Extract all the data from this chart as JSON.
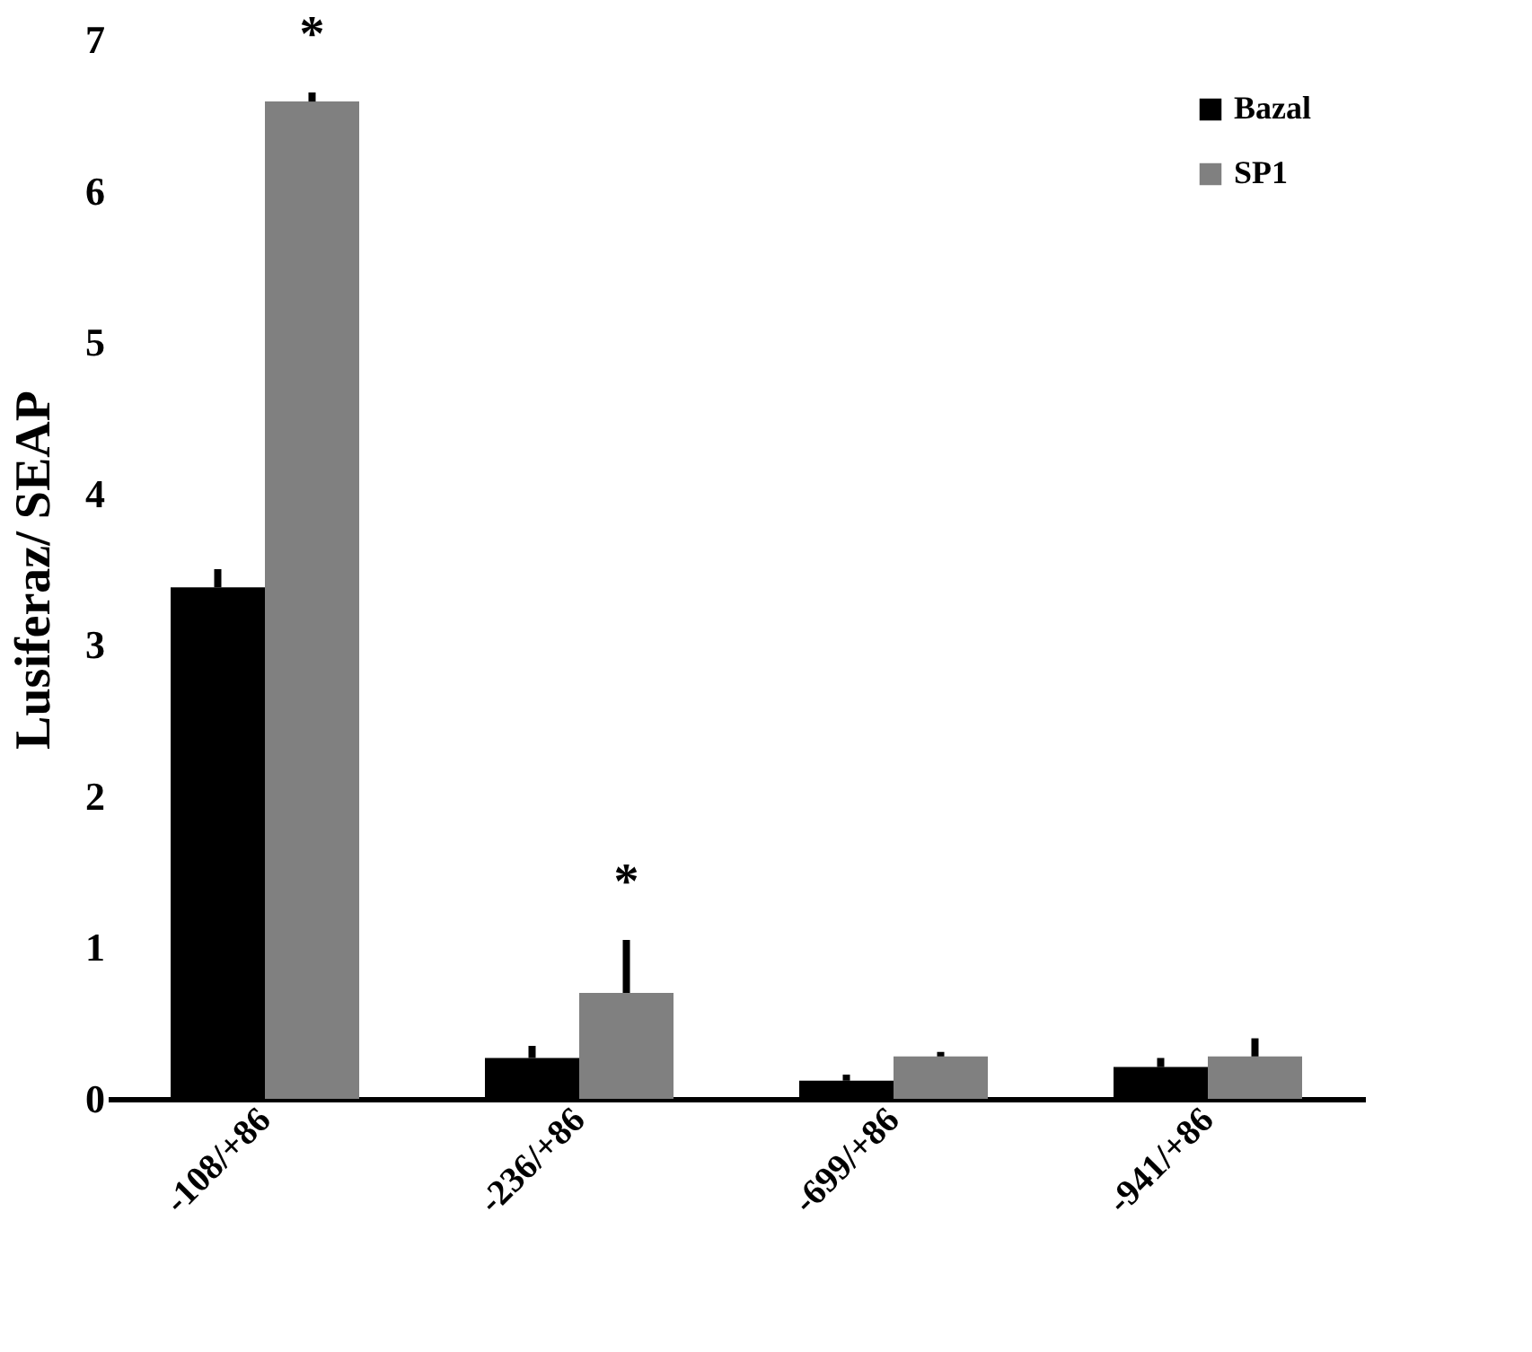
{
  "chart_data": {
    "type": "bar",
    "ylabel": "Lusiferaz/ SEAP",
    "categories": [
      "-108/+86",
      "-236/+86",
      "-699/+86",
      "-941/+86"
    ],
    "series": [
      {
        "name": "Bazal",
        "color": "#000000",
        "values": [
          3.38,
          0.27,
          0.12,
          0.21
        ],
        "errors": [
          [
            3.38,
            3.5
          ],
          [
            0.27,
            0.35
          ],
          [
            0.12,
            0.16
          ],
          [
            0.21,
            0.27
          ]
        ]
      },
      {
        "name": "SP1",
        "color": "#808080",
        "values": [
          6.59,
          0.7,
          0.28,
          0.28
        ],
        "errors": [
          [
            6.59,
            6.65
          ],
          [
            0.7,
            1.05
          ],
          [
            0.28,
            0.31
          ],
          [
            0.28,
            0.4
          ]
        ]
      }
    ],
    "annotations": [
      "*",
      "*"
    ],
    "ylim": [
      0,
      7
    ],
    "yticks": [
      0,
      1,
      2,
      3,
      4,
      5,
      6,
      7
    ],
    "grid": false,
    "legend": "top right"
  }
}
